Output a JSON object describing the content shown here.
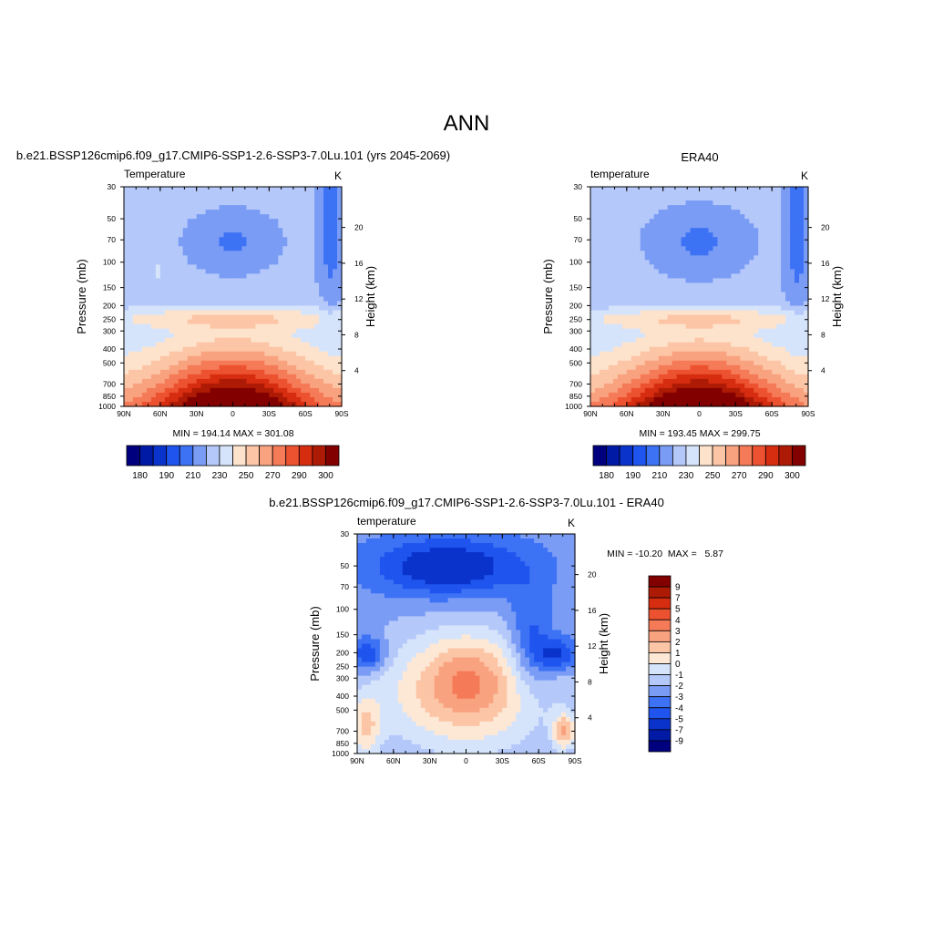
{
  "page_title": "ANN",
  "colors": {
    "model_fill_levels": [
      "#00007f",
      "#001aa6",
      "#0a33cc",
      "#1f55ee",
      "#3d72f5",
      "#7a9cf5",
      "#b4c8fa",
      "#d6e4fb",
      "#fde3cc",
      "#fcc5a6",
      "#f9a27f",
      "#f57a57",
      "#ed5230",
      "#d62d10",
      "#ad1a05",
      "#820000"
    ],
    "diff_fill_levels": [
      "#00007f",
      "#001aa6",
      "#0a33cc",
      "#1f55ee",
      "#3d72f5",
      "#7a9cf5",
      "#b4c8fa",
      "#d6e4fb",
      "#fde8d6",
      "#fcc5a6",
      "#f9a27f",
      "#f57a57",
      "#ed5230",
      "#d62d10",
      "#ad1a05",
      "#820000"
    ]
  },
  "chart_data": [
    {
      "id": "model",
      "type": "contour",
      "title": "b.e21.BSSP126cmip6.f09_g17.CMIP6-SSP1-2.6-SSP3-7.0Lu.101 (yrs 2045-2069)",
      "left_label": "Temperature",
      "units": "K",
      "ylabel": "Pressure (mb)",
      "y2label": "Height (km)",
      "xticks": [
        "90N",
        "60N",
        "30N",
        "0",
        "30S",
        "60S",
        "90S"
      ],
      "yticks": [
        30,
        50,
        70,
        100,
        150,
        200,
        250,
        300,
        400,
        500,
        700,
        850,
        1000
      ],
      "y2ticks": [
        4,
        8,
        12,
        16,
        20
      ],
      "min": "194.14",
      "max": "301.08",
      "stats_text": "MIN = 194.14  MAX = 301.08",
      "colorbar_labels": [
        "180",
        "190",
        "210",
        "230",
        "250",
        "270",
        "290",
        "300"
      ]
    },
    {
      "id": "obs",
      "type": "contour",
      "title": "ERA40",
      "left_label": "temperature",
      "units": "K",
      "ylabel": "Pressure (mb)",
      "y2label": "Height (km)",
      "xticks": [
        "90N",
        "60N",
        "30N",
        "0",
        "30S",
        "60S",
        "90S"
      ],
      "yticks": [
        30,
        50,
        70,
        100,
        150,
        200,
        250,
        300,
        400,
        500,
        700,
        850,
        1000
      ],
      "y2ticks": [
        4,
        8,
        12,
        16,
        20
      ],
      "min": "193.45",
      "max": "299.75",
      "stats_text": "MIN = 193.45  MAX = 299.75",
      "colorbar_labels": [
        "180",
        "190",
        "210",
        "230",
        "250",
        "270",
        "290",
        "300"
      ]
    },
    {
      "id": "diff",
      "type": "contour",
      "title": "b.e21.BSSP126cmip6.f09_g17.CMIP6-SSP1-2.6-SSP3-7.0Lu.101 - ERA40",
      "left_label": "temperature",
      "units": "K",
      "ylabel": "Pressure (mb)",
      "y2label": "Height (km)",
      "xticks": [
        "90N",
        "60N",
        "30N",
        "0",
        "30S",
        "60S",
        "90S"
      ],
      "yticks": [
        30,
        50,
        70,
        100,
        150,
        200,
        250,
        300,
        400,
        500,
        700,
        850,
        1000
      ],
      "y2ticks": [
        4,
        8,
        12,
        16,
        20
      ],
      "min": "-10.20",
      "max": "5.87",
      "stats_text": "MIN = -10.20  MAX =   5.87",
      "colorbar_labels": [
        "9",
        "7",
        "5",
        "4",
        "3",
        "2",
        "1",
        "0",
        "-1",
        "-2",
        "-3",
        "-4",
        "-5",
        "-7",
        "-9"
      ]
    }
  ]
}
